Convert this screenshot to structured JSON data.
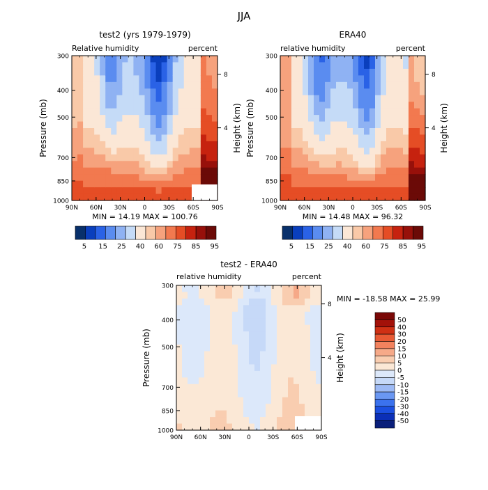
{
  "figure": {
    "title": "JJA",
    "font_note": "",
    "colors": {
      "positive_scale": [
        "#08306b",
        "#0a3fbd",
        "#2a62e6",
        "#5a8cf0",
        "#8fb2f3",
        "#c5dbf7",
        "#fbe7d6",
        "#f9c9a8",
        "#f6a27d",
        "#f2794f",
        "#e54d25",
        "#c6220f",
        "#97100a",
        "#6b0a07"
      ],
      "diff_scale": [
        "#0a1f7a",
        "#0b2fb7",
        "#1b4fe0",
        "#3b72ee",
        "#6a97f2",
        "#9dbaf5",
        "#c6d9f8",
        "#dce8fa",
        "#fbe8d6",
        "#f9cdb0",
        "#f6a988",
        "#f2825e",
        "#e85a34",
        "#cf3014",
        "#a31109",
        "#7a0806"
      ]
    }
  },
  "chart_data": [
    {
      "type": "heatmap",
      "title": "test2 (yrs 1979-1979)",
      "left_label": "Relative humidity",
      "right_label": "percent",
      "ylabel": "Pressure (mb)",
      "ylabel_right": "Height (km)",
      "x_ticks": [
        "90N",
        "60N",
        "30N",
        "0",
        "30S",
        "60S",
        "90S"
      ],
      "y_ticks": [
        "300",
        "400",
        "500",
        "700",
        "850",
        "1000"
      ],
      "y_right_ticks": [
        "8",
        "4"
      ],
      "stats": "MIN =  14.19   MAX = 100.76",
      "colorbar_labels": [
        "5",
        "15",
        "25",
        "40",
        "60",
        "75",
        "85",
        "95"
      ]
    },
    {
      "type": "heatmap",
      "title": "ERA40",
      "left_label": "relative humidity",
      "right_label": "percent",
      "ylabel": "Pressure (mb)",
      "ylabel_right": "Height (km)",
      "x_ticks": [
        "90N",
        "60N",
        "30N",
        "0",
        "30S",
        "60S",
        "90S"
      ],
      "y_ticks": [
        "300",
        "400",
        "500",
        "700",
        "850",
        "1000"
      ],
      "y_right_ticks": [
        "8",
        "4"
      ],
      "stats": "MIN =  14.48   MAX =  96.32",
      "colorbar_labels": [
        "5",
        "15",
        "25",
        "40",
        "60",
        "75",
        "85",
        "95"
      ]
    },
    {
      "type": "heatmap",
      "title": "test2 - ERA40",
      "left_label": "relative humidity",
      "right_label": "percent",
      "ylabel": "Pressure (mb)",
      "ylabel_right": "Height (km)",
      "x_ticks": [
        "90N",
        "60N",
        "30N",
        "0",
        "30S",
        "60S",
        "90S"
      ],
      "y_ticks": [
        "300",
        "400",
        "500",
        "700",
        "850",
        "1000"
      ],
      "y_right_ticks": [
        "8",
        "4"
      ],
      "stats": "MIN = -18.58   MAX =  25.99",
      "colorbar_labels": [
        "50",
        "40",
        "30",
        "20",
        "15",
        "10",
        "5",
        "0",
        "-5",
        "-10",
        "-15",
        "-20",
        "-30",
        "-40",
        "-50"
      ]
    }
  ]
}
